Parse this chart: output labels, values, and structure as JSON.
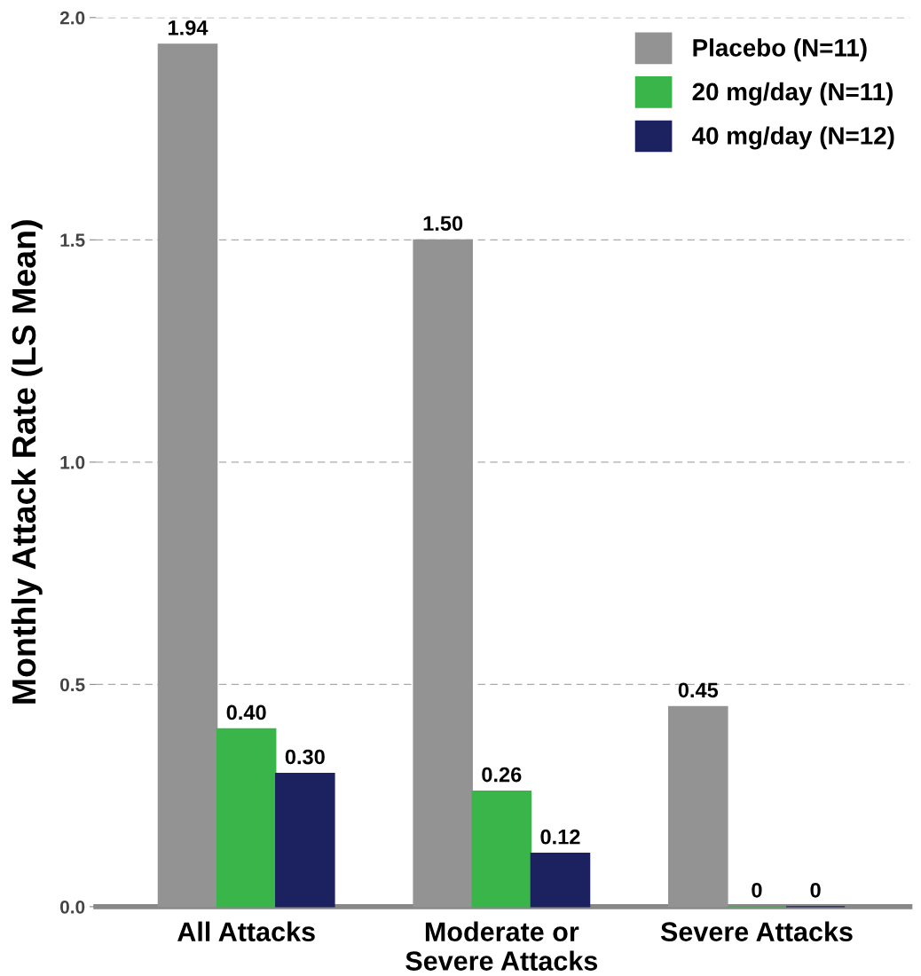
{
  "chart_data": {
    "type": "bar",
    "ylabel": "Monthly Attack Rate (LS Mean)",
    "categories": [
      "All Attacks",
      "Moderate or\nSevere Attacks",
      "Severe Attacks"
    ],
    "series": [
      {
        "name": "Placebo (N=11)",
        "color": "#939393",
        "values": [
          1.94,
          1.5,
          0.45
        ],
        "value_labels": [
          "1.94",
          "1.50",
          "0.45"
        ]
      },
      {
        "name": "20 mg/day (N=11)",
        "color": "#39b54a",
        "values": [
          0.4,
          0.26,
          0
        ],
        "value_labels": [
          "0.40",
          "0.26",
          "0"
        ]
      },
      {
        "name": "40 mg/day (N=12)",
        "color": "#1c2160",
        "values": [
          0.3,
          0.12,
          0
        ],
        "value_labels": [
          "0.30",
          "0.12",
          "0"
        ]
      }
    ],
    "ylim": [
      0,
      2.0
    ],
    "yticks": [
      {
        "value": 0,
        "label": "0.0"
      },
      0.5,
      {
        "value": 1,
        "label": "1.0"
      },
      1.5,
      {
        "value": 2,
        "label": "2.0"
      }
    ],
    "grid": "y",
    "legend": "top right"
  }
}
